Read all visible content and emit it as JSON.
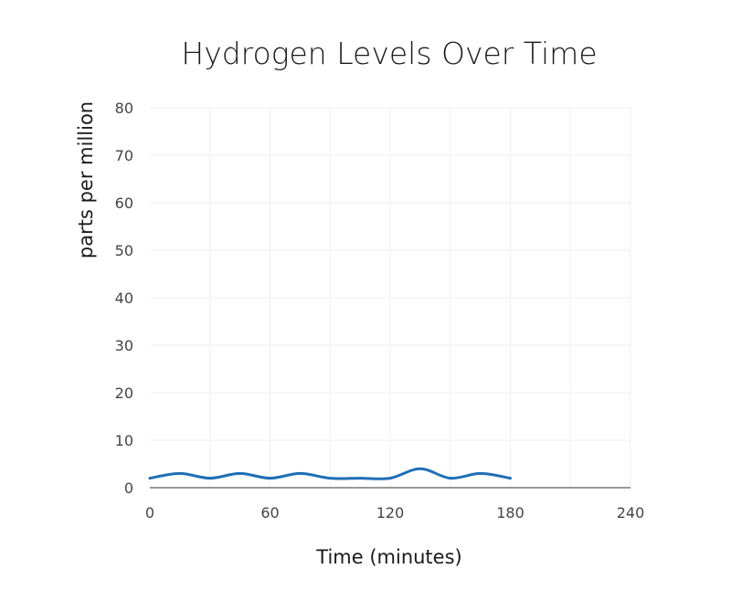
{
  "chart_data": {
    "type": "line",
    "title": "Hydrogen Levels Over Time",
    "xlabel": "Time (minutes)",
    "ylabel": "parts per million",
    "xlim": [
      0,
      240
    ],
    "ylim": [
      0,
      80
    ],
    "x_ticks": [
      0,
      60,
      120,
      180,
      240
    ],
    "y_ticks": [
      0,
      10,
      20,
      30,
      40,
      50,
      60,
      70,
      80
    ],
    "grid": true,
    "series": [
      {
        "color": "#1f6fb5",
        "x": [
          0,
          15,
          30,
          45,
          60,
          75,
          90,
          105,
          120,
          135,
          150,
          165,
          180
        ],
        "y": [
          2,
          3,
          2,
          3,
          2,
          3,
          2,
          2,
          2,
          4,
          2,
          3,
          2
        ]
      }
    ]
  }
}
